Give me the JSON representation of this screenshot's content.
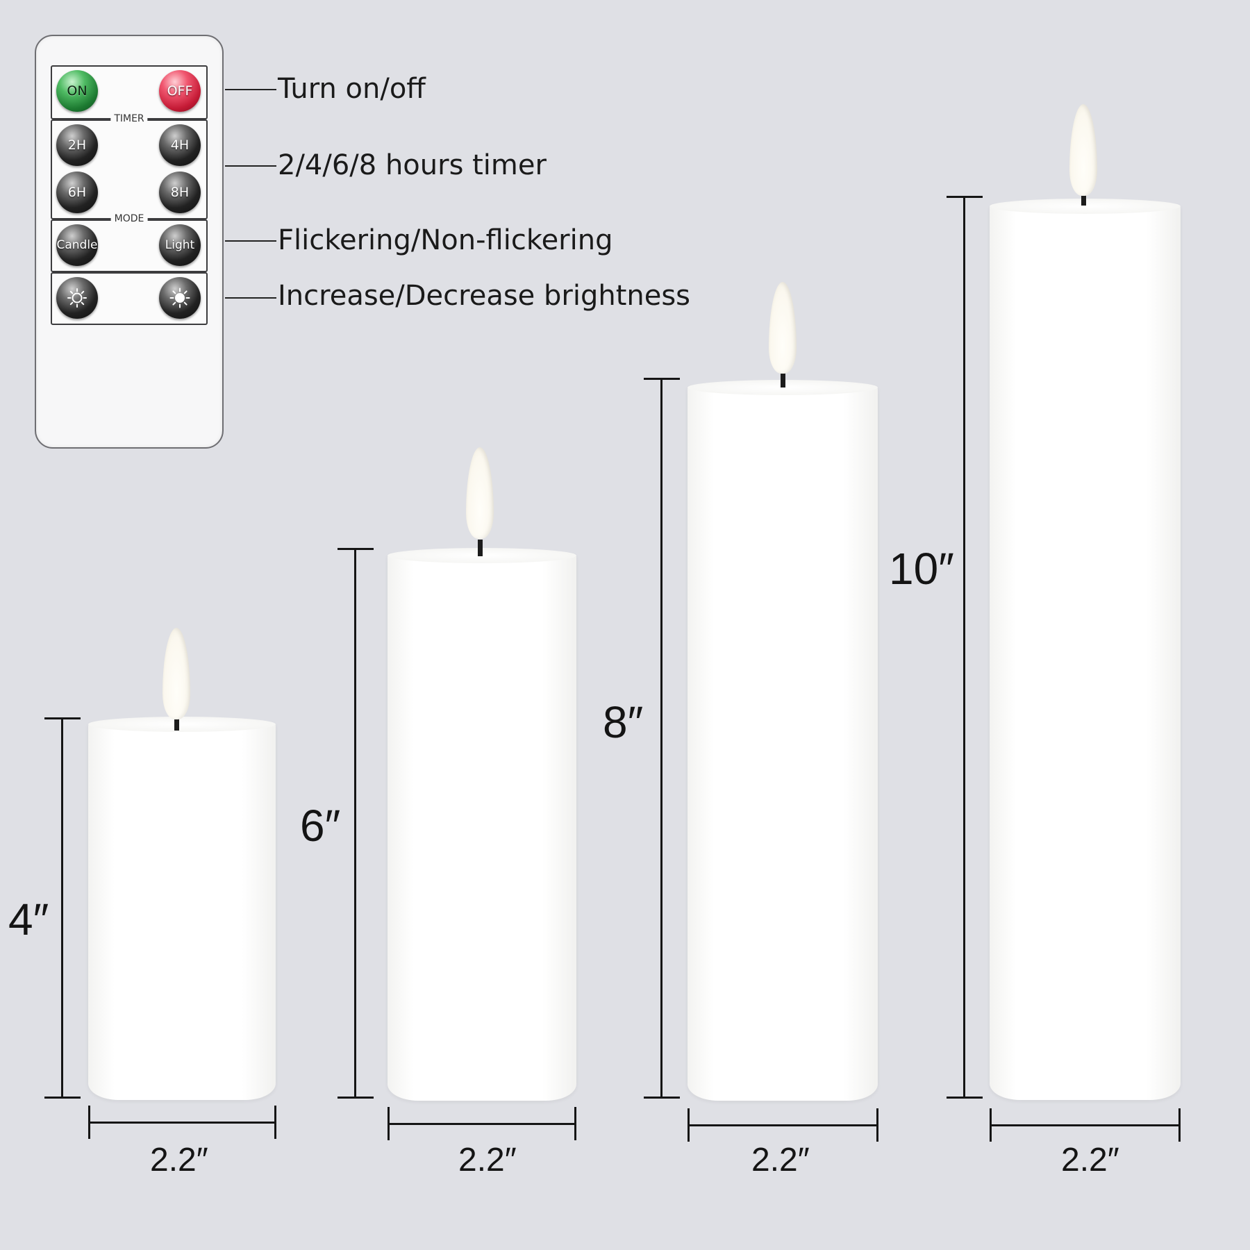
{
  "remote": {
    "power": {
      "on_label": "ON",
      "off_label": "OFF"
    },
    "timer": {
      "group_label": "TIMER",
      "buttons": [
        "2H",
        "4H",
        "6H",
        "8H"
      ]
    },
    "mode": {
      "group_label": "MODE",
      "candle_label": "Candle",
      "light_label": "Light"
    },
    "brightness": {
      "increase_icon": "sun-icon",
      "decrease_icon": "sun-icon"
    }
  },
  "features": {
    "power": "Turn on/off",
    "timer": "2/4/6/8 hours timer",
    "mode": "Flickering/Non-flickering",
    "brightness": "Increase/Decrease brightness"
  },
  "candles": [
    {
      "height": "4″",
      "width": "2.2″"
    },
    {
      "height": "6″",
      "width": "2.2″"
    },
    {
      "height": "8″",
      "width": "2.2″"
    },
    {
      "height": "10″",
      "width": "2.2″"
    }
  ],
  "colors": {
    "background": "#dfe0e5",
    "on_button": "#1d7a31",
    "off_button": "#c41a35",
    "candle": "#ffffff"
  }
}
